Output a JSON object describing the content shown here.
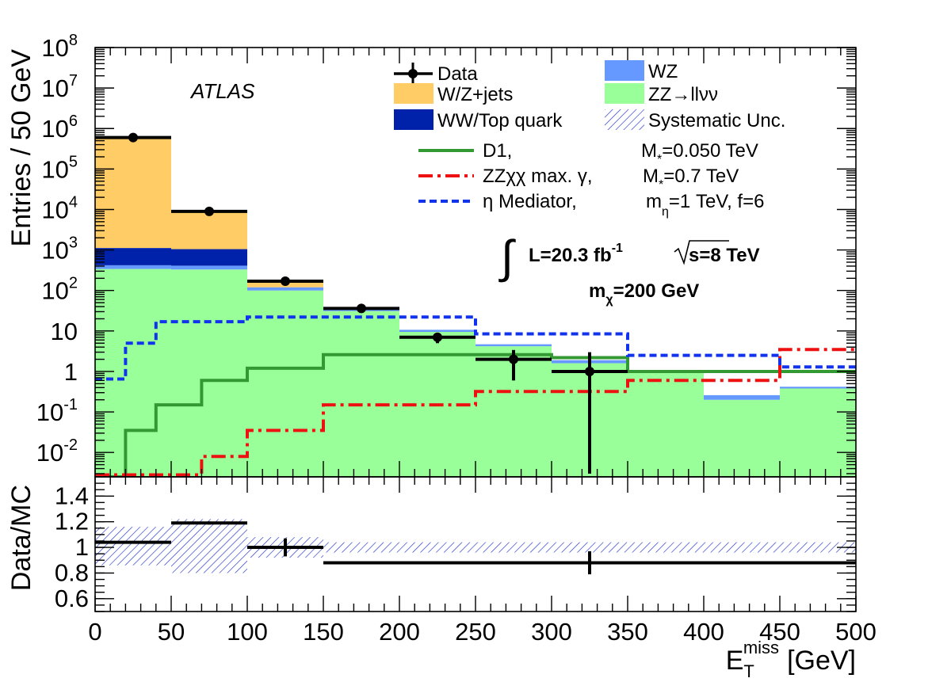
{
  "chart_data": [
    {
      "type": "bar",
      "subtype": "stacked-step-histogram",
      "yscale": "log",
      "xlim": [
        0,
        500
      ],
      "ylim": [
        0.0025,
        100000000
      ],
      "ylabel": "Entries / 50 GeV",
      "ytick_labels": [
        {
          "v": 0.01,
          "base": "10",
          "exp": "-2"
        },
        {
          "v": 0.1,
          "base": "10",
          "exp": "-1"
        },
        {
          "v": 1,
          "base": "1",
          "exp": ""
        },
        {
          "v": 10,
          "base": "10",
          "exp": ""
        },
        {
          "v": 100,
          "base": "10",
          "exp": "2"
        },
        {
          "v": 1000,
          "base": "10",
          "exp": "3"
        },
        {
          "v": 10000,
          "base": "10",
          "exp": "4"
        },
        {
          "v": 100000,
          "base": "10",
          "exp": "5"
        },
        {
          "v": 1000000,
          "base": "10",
          "exp": "6"
        },
        {
          "v": 10000000,
          "base": "10",
          "exp": "7"
        },
        {
          "v": 100000000,
          "base": "10",
          "exp": "8"
        }
      ],
      "bin_edges": [
        0,
        50,
        100,
        150,
        200,
        250,
        300,
        350,
        400,
        450,
        500
      ],
      "stack": [
        {
          "name": "ZZ→llνν",
          "color": "#99ff99",
          "values": [
            340,
            330,
            100,
            31,
            9.5,
            4.2,
            1.6,
            1.0,
            0.2,
            0.38
          ]
        },
        {
          "name": "WZ",
          "color": "#6699ff",
          "values": [
            80,
            80,
            20,
            3,
            1.2,
            0.5,
            0.3,
            0.03,
            0.06,
            0.04
          ]
        },
        {
          "name": "WW/Top quark",
          "color": "#0022aa",
          "values": [
            700,
            640,
            0,
            0,
            0,
            0,
            0,
            0,
            0,
            0
          ]
        },
        {
          "name": "W/Z+jets",
          "color": "#ffcc66",
          "values": [
            599000,
            8000,
            40,
            0,
            0,
            0,
            0,
            0,
            0,
            0
          ]
        }
      ],
      "data_points": {
        "name": "Data",
        "x": [
          25,
          75,
          125,
          175,
          225,
          275,
          325
        ],
        "y": [
          600000,
          9000,
          170,
          36,
          7,
          2,
          1
        ],
        "yerr_low": [
          0,
          0,
          0,
          0,
          2,
          1.4,
          0.997
        ],
        "yerr_high": [
          0,
          0,
          0,
          0,
          2,
          1.4,
          2
        ]
      },
      "signal_lines": [
        {
          "name": "D1,",
          "mass_label": "M",
          "mass_sub": "*",
          "mass_value": "=0.050 TeV",
          "color": "#339933",
          "dash": "",
          "x": [
            0,
            20,
            20,
            40,
            40,
            70,
            70,
            100,
            100,
            150,
            150,
            300,
            300,
            350,
            350,
            500
          ],
          "y": [
            0.0025,
            0.0025,
            0.035,
            0.035,
            0.15,
            0.15,
            0.6,
            0.6,
            1.2,
            1.2,
            2.6,
            2.6,
            2.2,
            2.2,
            1.0,
            1.0
          ]
        },
        {
          "name": "ZZχχ max. γ,",
          "mass_label": "M",
          "mass_sub": "*",
          "mass_value": "=0.7 TeV",
          "color": "#ee1111",
          "dash": "18 6 4 6",
          "x": [
            0,
            70,
            70,
            100,
            100,
            150,
            150,
            250,
            250,
            350,
            350,
            450,
            450,
            500
          ],
          "y": [
            0.0028,
            0.0028,
            0.008,
            0.008,
            0.035,
            0.035,
            0.15,
            0.15,
            0.32,
            0.32,
            0.6,
            0.6,
            3.5,
            3.5
          ]
        },
        {
          "name": "η Mediator,",
          "mass_label": "m",
          "mass_sub": "η",
          "mass_value": "=1 TeV, f=6",
          "color": "#1133ee",
          "dash": "9 5",
          "x": [
            0,
            20,
            20,
            40,
            40,
            100,
            100,
            250,
            250,
            350,
            350,
            450,
            450,
            500
          ],
          "y": [
            0.65,
            0.65,
            5,
            5,
            17,
            17,
            22,
            22,
            8.5,
            8.5,
            2.5,
            2.5,
            1.3,
            1.3
          ]
        }
      ],
      "legend": {
        "data": "Data",
        "syst": "Systematic Unc."
      },
      "annotations": {
        "experiment": "ATLAS",
        "lumi_prefix": "L=20.3 fb",
        "lumi_exp": "-1",
        "energy": "s=8 TeV",
        "mass_prefix": "m",
        "mass_sub": "χ",
        "mass_suffix": "=200 GeV"
      }
    },
    {
      "type": "scatter",
      "subtype": "ratio-panel",
      "ylabel": "Data/MC",
      "ylim": [
        0.5,
        1.55
      ],
      "yticks": [
        0.6,
        0.8,
        1,
        1.2,
        1.4
      ],
      "ytick_labels": [
        "0.6",
        "0.8",
        "1",
        "1.2",
        "1.4"
      ],
      "xlim": [
        0,
        500
      ],
      "xticks": [
        0,
        50,
        100,
        150,
        200,
        250,
        300,
        350,
        400,
        450,
        500
      ],
      "xtick_labels": [
        "0",
        "50",
        "100",
        "150",
        "200",
        "250",
        "300",
        "350",
        "400",
        "450",
        "500"
      ],
      "xlabel": "E",
      "xlabel_sub": "T",
      "xlabel_sup": "miss",
      "xlabel_unit": "[GeV]",
      "points": [
        {
          "x_lo": 0,
          "x_hi": 50,
          "y": 1.04,
          "err": 0.0
        },
        {
          "x_lo": 50,
          "x_hi": 100,
          "y": 1.19,
          "err": 0.012
        },
        {
          "x_lo": 100,
          "x_hi": 150,
          "y": 1.0,
          "err": 0.07
        },
        {
          "x_lo": 150,
          "x_hi": 500,
          "y": 0.88,
          "err": 0.09
        }
      ],
      "point_markers_x": [
        125,
        325
      ],
      "syst_band": [
        {
          "x_lo": 0,
          "x_hi": 50,
          "lo": 0.86,
          "hi": 1.16
        },
        {
          "x_lo": 50,
          "x_hi": 100,
          "lo": 0.8,
          "hi": 1.22
        },
        {
          "x_lo": 100,
          "x_hi": 150,
          "lo": 0.92,
          "hi": 1.08
        },
        {
          "x_lo": 150,
          "x_hi": 500,
          "lo": 0.96,
          "hi": 1.04
        }
      ]
    }
  ]
}
